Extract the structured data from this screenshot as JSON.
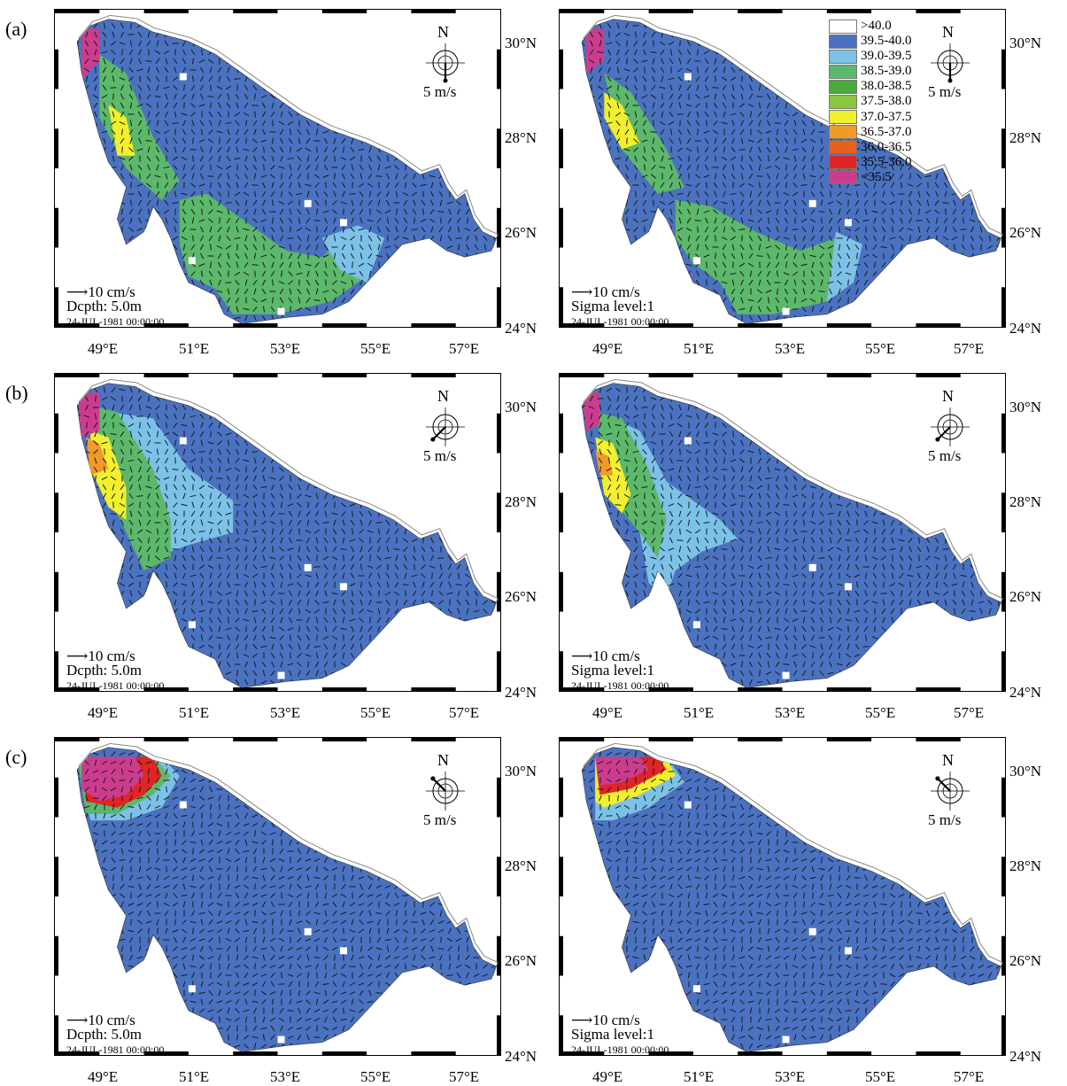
{
  "panels": [
    {
      "letter": "(a)",
      "left": {
        "vec": "⟶10 cm/s",
        "label": "Dcpth: 5.0m",
        "date": "24-JUL-1981  00:00:00",
        "wind": "5 m/s"
      },
      "right": {
        "vec": "⟶10 cm/s",
        "label": "Sigma  level:1",
        "date": "24-JUL-1981  00:00:00",
        "wind": "5 m/s"
      }
    },
    {
      "letter": "(b)",
      "left": {
        "vec": "⟶10 cm/s",
        "label": "Dcpth: 5.0m",
        "date": "24-JUL-1981  00:00:00",
        "wind": "5 m/s"
      },
      "right": {
        "vec": "⟶10 cm/s",
        "label": "Sigma  level:1",
        "date": "24-JUL-1981  00:00:00",
        "wind": "5 m/s"
      }
    },
    {
      "letter": "(c)",
      "left": {
        "vec": "⟶10 cm/s",
        "label": "Dcpth: 5.0m",
        "date": "24-JUL-1981  00:00:00",
        "wind": "5 m/s"
      },
      "right": {
        "vec": "⟶10 cm/s",
        "label": "Sigma  level:1",
        "date": "24-JUL-1981  00:00:00",
        "wind": "5 m/s"
      }
    }
  ],
  "compass_label": "N",
  "x_ticks": [
    "49°E",
    "51°E",
    "53°E",
    "55°E",
    "57°E"
  ],
  "y_ticks": [
    "30°N",
    "28°N",
    "26°N",
    "24°N"
  ],
  "legend": [
    {
      "label": ">40.0",
      "color": "#ffffff"
    },
    {
      "label": "39.5-40.0",
      "color": "#4a72c0"
    },
    {
      "label": "39.0-39.5",
      "color": "#7cc2e8"
    },
    {
      "label": "38.5-39.0",
      "color": "#5cb86a"
    },
    {
      "label": "38.0-38.5",
      "color": "#4aab3c"
    },
    {
      "label": "37.5-38.0",
      "color": "#8cc63f"
    },
    {
      "label": "37.0-37.5",
      "color": "#f2ef2c"
    },
    {
      "label": "36.5-37.0",
      "color": "#f09a2a"
    },
    {
      "label": "36.0-36.5",
      "color": "#e8601e"
    },
    {
      "label": "35.5-36.0",
      "color": "#e02525"
    },
    {
      "label": "<35.5",
      "color": "#cc3c8e"
    }
  ],
  "wind_arrow_bearing_deg": [
    [
      180,
      180
    ],
    [
      225,
      225
    ],
    [
      315,
      315
    ]
  ],
  "colors": {
    "sea": "#4a72c0",
    "light_blue": "#7cc2e8",
    "green": "#5cb86a",
    "yellow": "#f2ef2c",
    "orange": "#f09a2a",
    "red": "#e02525",
    "magenta": "#cc3c8e"
  }
}
